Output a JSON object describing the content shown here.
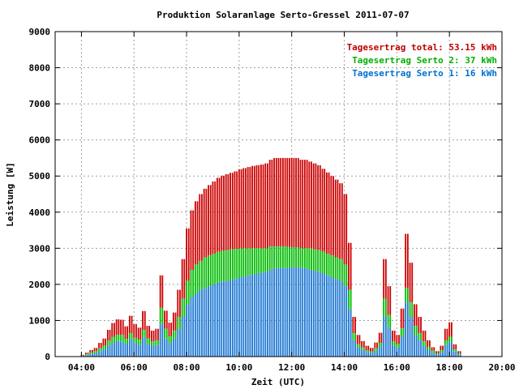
{
  "chart_data": {
    "type": "bar",
    "stacked": true,
    "title": "Produktion Solaranlage Serto-Gressel 2011-07-07",
    "xlabel": "Zeit (UTC)",
    "ylabel": "Leistung [W]",
    "xlim": [
      "03:00",
      "20:00"
    ],
    "ylim": [
      0,
      9000
    ],
    "x_ticks": [
      "04:00",
      "06:00",
      "08:00",
      "10:00",
      "12:00",
      "14:00",
      "16:00",
      "18:00",
      "20:00"
    ],
    "y_ticks": [
      "0",
      "1000",
      "2000",
      "3000",
      "4000",
      "5000",
      "6000",
      "7000",
      "8000",
      "9000"
    ],
    "grid": true,
    "legend_position": "top-right",
    "legend": [
      {
        "text": "Tagesertrag total: 53.15 kWh",
        "color": "#c00000"
      },
      {
        "text": "Tagesertrag Serto 2: 37 kWh",
        "color": "#00b000"
      },
      {
        "text": "Tagesertrag Serto 1: 16 kWh",
        "color": "#0070d0"
      }
    ],
    "colors": {
      "total": "#cc0000",
      "serto2": "#00bb00",
      "serto1": "#1e78d2"
    },
    "x": [
      "04:00",
      "04:10",
      "04:20",
      "04:30",
      "04:40",
      "04:50",
      "05:00",
      "05:10",
      "05:20",
      "05:30",
      "05:40",
      "05:50",
      "06:00",
      "06:10",
      "06:20",
      "06:30",
      "06:40",
      "06:50",
      "07:00",
      "07:10",
      "07:20",
      "07:30",
      "07:40",
      "07:50",
      "08:00",
      "08:10",
      "08:20",
      "08:30",
      "08:40",
      "08:50",
      "09:00",
      "09:10",
      "09:20",
      "09:30",
      "09:40",
      "09:50",
      "10:00",
      "10:10",
      "10:20",
      "10:30",
      "10:40",
      "10:50",
      "11:00",
      "11:10",
      "11:20",
      "11:30",
      "11:40",
      "11:50",
      "12:00",
      "12:10",
      "12:20",
      "12:30",
      "12:40",
      "12:50",
      "13:00",
      "13:10",
      "13:20",
      "13:30",
      "13:40",
      "13:50",
      "14:00",
      "14:10",
      "14:20",
      "14:30",
      "14:40",
      "14:50",
      "15:00",
      "15:10",
      "15:20",
      "15:30",
      "15:40",
      "15:50",
      "16:00",
      "16:10",
      "16:20",
      "16:30",
      "16:40",
      "16:50",
      "17:00",
      "17:10",
      "17:20",
      "17:30",
      "17:40",
      "17:50",
      "18:00",
      "18:10",
      "18:20"
    ],
    "series": [
      {
        "name": "Serto 1",
        "values": [
          20,
          40,
          70,
          90,
          150,
          200,
          300,
          380,
          430,
          420,
          350,
          480,
          380,
          330,
          520,
          350,
          300,
          320,
          900,
          500,
          380,
          500,
          750,
          1100,
          1450,
          1650,
          1750,
          1850,
          1900,
          1950,
          2000,
          2050,
          2080,
          2100,
          2120,
          2150,
          2200,
          2220,
          2250,
          2280,
          2300,
          2320,
          2350,
          2400,
          2450,
          2450,
          2450,
          2460,
          2470,
          2470,
          2450,
          2450,
          2400,
          2380,
          2350,
          2300,
          2250,
          2200,
          2150,
          2100,
          1950,
          1300,
          450,
          250,
          180,
          130,
          100,
          160,
          280,
          1100,
          800,
          300,
          250,
          550,
          1500,
          1100,
          600,
          450,
          300,
          180,
          100,
          60,
          120,
          320,
          400,
          140,
          60
        ]
      },
      {
        "name": "Serto 2",
        "values": [
          30,
          70,
          110,
          150,
          230,
          300,
          440,
          550,
          600,
          600,
          490,
          650,
          520,
          470,
          740,
          500,
          420,
          450,
          1350,
          770,
          560,
          720,
          1100,
          1600,
          2100,
          2400,
          2550,
          2650,
          2750,
          2800,
          2850,
          2900,
          2930,
          2950,
          2970,
          2980,
          2990,
          3000,
          3000,
          3000,
          3000,
          3000,
          3000,
          3050,
          3050,
          3050,
          3050,
          3040,
          3030,
          3030,
          3000,
          3000,
          3000,
          2970,
          2950,
          2900,
          2850,
          2800,
          2750,
          2700,
          2550,
          1850,
          650,
          350,
          250,
          170,
          140,
          230,
          380,
          1600,
          1150,
          420,
          350,
          780,
          1900,
          1500,
          850,
          650,
          420,
          270,
          160,
          90,
          180,
          450,
          550,
          200,
          90
        ]
      },
      {
        "name": "total",
        "values": [
          50,
          110,
          180,
          240,
          380,
          500,
          740,
          930,
          1030,
          1020,
          840,
          1130,
          900,
          800,
          1260,
          850,
          720,
          770,
          2250,
          1270,
          940,
          1220,
          1850,
          2700,
          3550,
          4050,
          4300,
          4500,
          4650,
          4750,
          4850,
          4950,
          5010,
          5050,
          5090,
          5130,
          5190,
          5220,
          5250,
          5280,
          5300,
          5320,
          5350,
          5450,
          5500,
          5500,
          5500,
          5500,
          5500,
          5500,
          5450,
          5450,
          5400,
          5350,
          5300,
          5200,
          5100,
          5000,
          4900,
          4800,
          4500,
          3150,
          1100,
          600,
          430,
          300,
          240,
          390,
          660,
          2700,
          1950,
          720,
          600,
          1330,
          3400,
          2600,
          1450,
          1100,
          720,
          450,
          260,
          150,
          300,
          770,
          950,
          340,
          150
        ]
      },
      {
        "name": "total",
        "values": [
          50,
          110,
          180,
          240,
          380,
          500,
          740,
          930,
          1030,
          1020,
          840,
          1130,
          900,
          800,
          1260,
          850,
          720,
          770,
          2250,
          1270,
          940,
          1220,
          1850,
          2700,
          3550,
          4050,
          4300,
          4500,
          4650,
          4750,
          4850,
          4950,
          5010,
          5050,
          5090,
          5130,
          5190,
          5220,
          5250,
          5280,
          5300,
          5320,
          5350,
          5450,
          5500,
          5500,
          5500,
          5500,
          5500,
          5500,
          5450,
          5450,
          5400,
          5350,
          5300,
          5200,
          5100,
          5000,
          4900,
          4800,
          4500,
          3150,
          1100,
          600,
          430,
          300,
          240,
          390,
          660,
          2700,
          1950,
          720,
          600,
          1330,
          3400,
          2600,
          1450,
          1100,
          720,
          450,
          260,
          150,
          300,
          770,
          950,
          340,
          150
        ]
      }
    ]
  }
}
